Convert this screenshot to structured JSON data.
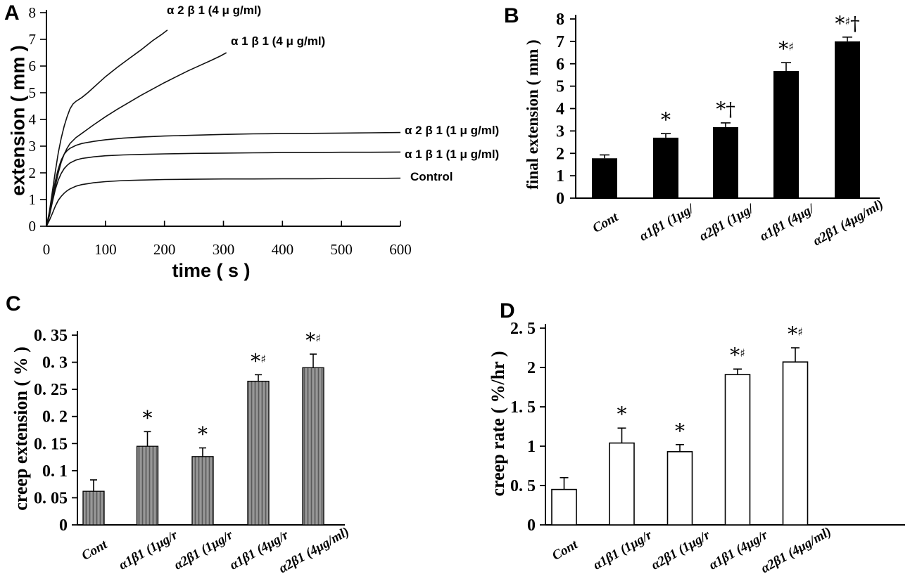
{
  "figure": {
    "background": "#ffffff",
    "colors": {
      "stroke": "#000000",
      "bar_black": "#000000",
      "bar_gray": "#989898",
      "hatch_line": "#5a5a5a",
      "bar_white": "#ffffff"
    }
  },
  "chart_data": [
    {
      "panel_label": "A",
      "type": "line",
      "xlabel": "time ( s )",
      "ylabel": "extension ( mm )",
      "xlim": [
        0,
        600
      ],
      "ylim": [
        0,
        8
      ],
      "xticks": [
        0,
        100,
        200,
        300,
        400,
        500,
        600
      ],
      "yticks": [
        0,
        1,
        2,
        3,
        4,
        5,
        6,
        7,
        8
      ],
      "grid": false,
      "series": [
        {
          "label": "α 2 β 1 (4 μ g/ml)",
          "points": [
            [
              0,
              0
            ],
            [
              5,
              0.55
            ],
            [
              10,
              1.3
            ],
            [
              15,
              2.05
            ],
            [
              20,
              2.75
            ],
            [
              25,
              3.3
            ],
            [
              30,
              3.75
            ],
            [
              35,
              4.1
            ],
            [
              40,
              4.4
            ],
            [
              45,
              4.58
            ],
            [
              50,
              4.68
            ],
            [
              60,
              4.82
            ],
            [
              70,
              5.0
            ],
            [
              80,
              5.2
            ],
            [
              90,
              5.4
            ],
            [
              100,
              5.6
            ],
            [
              120,
              5.95
            ],
            [
              140,
              6.28
            ],
            [
              160,
              6.6
            ],
            [
              180,
              6.95
            ],
            [
              195,
              7.18
            ],
            [
              205,
              7.35
            ]
          ]
        },
        {
          "label": "α 1 β 1 (4 μ g/ml)",
          "points": [
            [
              0,
              0
            ],
            [
              5,
              0.4
            ],
            [
              10,
              0.95
            ],
            [
              15,
              1.5
            ],
            [
              20,
              2.0
            ],
            [
              25,
              2.4
            ],
            [
              30,
              2.7
            ],
            [
              35,
              2.92
            ],
            [
              40,
              3.1
            ],
            [
              50,
              3.32
            ],
            [
              60,
              3.48
            ],
            [
              80,
              3.8
            ],
            [
              100,
              4.1
            ],
            [
              120,
              4.38
            ],
            [
              140,
              4.64
            ],
            [
              160,
              4.9
            ],
            [
              180,
              5.14
            ],
            [
              200,
              5.38
            ],
            [
              220,
              5.6
            ],
            [
              240,
              5.82
            ],
            [
              260,
              6.02
            ],
            [
              280,
              6.22
            ],
            [
              295,
              6.38
            ],
            [
              305,
              6.5
            ]
          ]
        },
        {
          "label": "α 2 β 1 (1 μ g/ml)",
          "points": [
            [
              0,
              0
            ],
            [
              5,
              0.5
            ],
            [
              10,
              1.1
            ],
            [
              15,
              1.7
            ],
            [
              20,
              2.15
            ],
            [
              25,
              2.48
            ],
            [
              30,
              2.7
            ],
            [
              35,
              2.83
            ],
            [
              40,
              2.92
            ],
            [
              50,
              3.03
            ],
            [
              60,
              3.1
            ],
            [
              80,
              3.18
            ],
            [
              100,
              3.24
            ],
            [
              130,
              3.3
            ],
            [
              160,
              3.34
            ],
            [
              200,
              3.38
            ],
            [
              250,
              3.41
            ],
            [
              300,
              3.44
            ],
            [
              350,
              3.46
            ],
            [
              400,
              3.47
            ],
            [
              450,
              3.48
            ],
            [
              500,
              3.49
            ],
            [
              550,
              3.5
            ],
            [
              600,
              3.51
            ]
          ]
        },
        {
          "label": "α 1 β 1 (1 μ g/ml)",
          "points": [
            [
              0,
              0
            ],
            [
              5,
              0.4
            ],
            [
              10,
              0.9
            ],
            [
              15,
              1.38
            ],
            [
              20,
              1.73
            ],
            [
              25,
              1.98
            ],
            [
              30,
              2.16
            ],
            [
              35,
              2.28
            ],
            [
              40,
              2.37
            ],
            [
              50,
              2.48
            ],
            [
              60,
              2.54
            ],
            [
              80,
              2.6
            ],
            [
              100,
              2.64
            ],
            [
              130,
              2.67
            ],
            [
              160,
              2.69
            ],
            [
              200,
              2.71
            ],
            [
              250,
              2.73
            ],
            [
              300,
              2.74
            ],
            [
              350,
              2.75
            ],
            [
              400,
              2.76
            ],
            [
              450,
              2.76
            ],
            [
              500,
              2.77
            ],
            [
              550,
              2.77
            ],
            [
              600,
              2.78
            ]
          ]
        },
        {
          "label": "Control",
          "points": [
            [
              0,
              0
            ],
            [
              5,
              0.22
            ],
            [
              10,
              0.48
            ],
            [
              15,
              0.75
            ],
            [
              20,
              0.97
            ],
            [
              25,
              1.12
            ],
            [
              30,
              1.24
            ],
            [
              35,
              1.33
            ],
            [
              40,
              1.4
            ],
            [
              50,
              1.5
            ],
            [
              60,
              1.56
            ],
            [
              80,
              1.63
            ],
            [
              100,
              1.67
            ],
            [
              130,
              1.71
            ],
            [
              160,
              1.73
            ],
            [
              200,
              1.75
            ],
            [
              250,
              1.76
            ],
            [
              300,
              1.77
            ],
            [
              350,
              1.77
            ],
            [
              400,
              1.78
            ],
            [
              450,
              1.78
            ],
            [
              500,
              1.79
            ],
            [
              550,
              1.79
            ],
            [
              600,
              1.8
            ]
          ]
        }
      ]
    },
    {
      "panel_label": "B",
      "type": "bar",
      "ylabel": "final extension ( mm )",
      "ylim": [
        0,
        8
      ],
      "ytick_values": [
        0,
        1,
        2,
        3,
        4,
        5,
        6,
        7,
        8
      ],
      "ytick_labels": [
        "0",
        "1",
        "2",
        "3",
        "4",
        "5",
        "6",
        "7",
        "8"
      ],
      "categories": [
        "Cont",
        "α1β1 (1μg/",
        "α2β1 (1μg/",
        "α1β1 (4μg/",
        "α2β1 (4μg/ml)"
      ],
      "values": [
        1.78,
        2.7,
        3.17,
        5.68,
        7.0
      ],
      "errors": [
        0.15,
        0.18,
        0.19,
        0.37,
        0.19
      ],
      "annotations": [
        "",
        "*",
        "*†",
        "*♯",
        "*♯†"
      ],
      "bar_style": "solid-black",
      "grid": false
    },
    {
      "panel_label": "C",
      "type": "bar",
      "ylabel": "creep extension ( % )",
      "ylim": [
        0,
        0.35
      ],
      "ytick_values": [
        0,
        0.05,
        0.1,
        0.15,
        0.2,
        0.25,
        0.3,
        0.35
      ],
      "ytick_labels": [
        "0",
        "0. 05",
        "0. 1",
        "0. 15",
        "0. 2",
        "0. 25",
        "0. 3",
        "0. 35"
      ],
      "categories": [
        "Cont",
        "α1β1 (1μg/r",
        "α2β1 (1μg/r",
        "α1β1 (4μg/r",
        "α2β1 (4μg/ml)"
      ],
      "values": [
        0.062,
        0.145,
        0.126,
        0.265,
        0.29
      ],
      "errors": [
        0.021,
        0.027,
        0.016,
        0.012,
        0.025
      ],
      "annotations": [
        "",
        "*",
        "*",
        "*♯",
        "*♯"
      ],
      "bar_style": "hatched-gray",
      "grid": false
    },
    {
      "panel_label": "D",
      "type": "bar",
      "ylabel": "creep rate ( %/hr )",
      "ylim": [
        0,
        2.5
      ],
      "ytick_values": [
        0,
        0.5,
        1,
        1.5,
        2,
        2.5
      ],
      "ytick_labels": [
        "0",
        "0. 5",
        "1",
        "1. 5",
        "2",
        "2. 5"
      ],
      "categories": [
        "Cont",
        "α1β1 (1μg/r",
        "α2β1 (1μg/r",
        "α1β1 (4μg/r",
        "α2β1 (4μg/ml)"
      ],
      "values": [
        0.45,
        1.04,
        0.93,
        1.91,
        2.07
      ],
      "errors": [
        0.15,
        0.19,
        0.09,
        0.07,
        0.18
      ],
      "annotations": [
        "",
        "*",
        "*",
        "*♯",
        "*♯"
      ],
      "bar_style": "white-outline",
      "grid": false
    }
  ]
}
